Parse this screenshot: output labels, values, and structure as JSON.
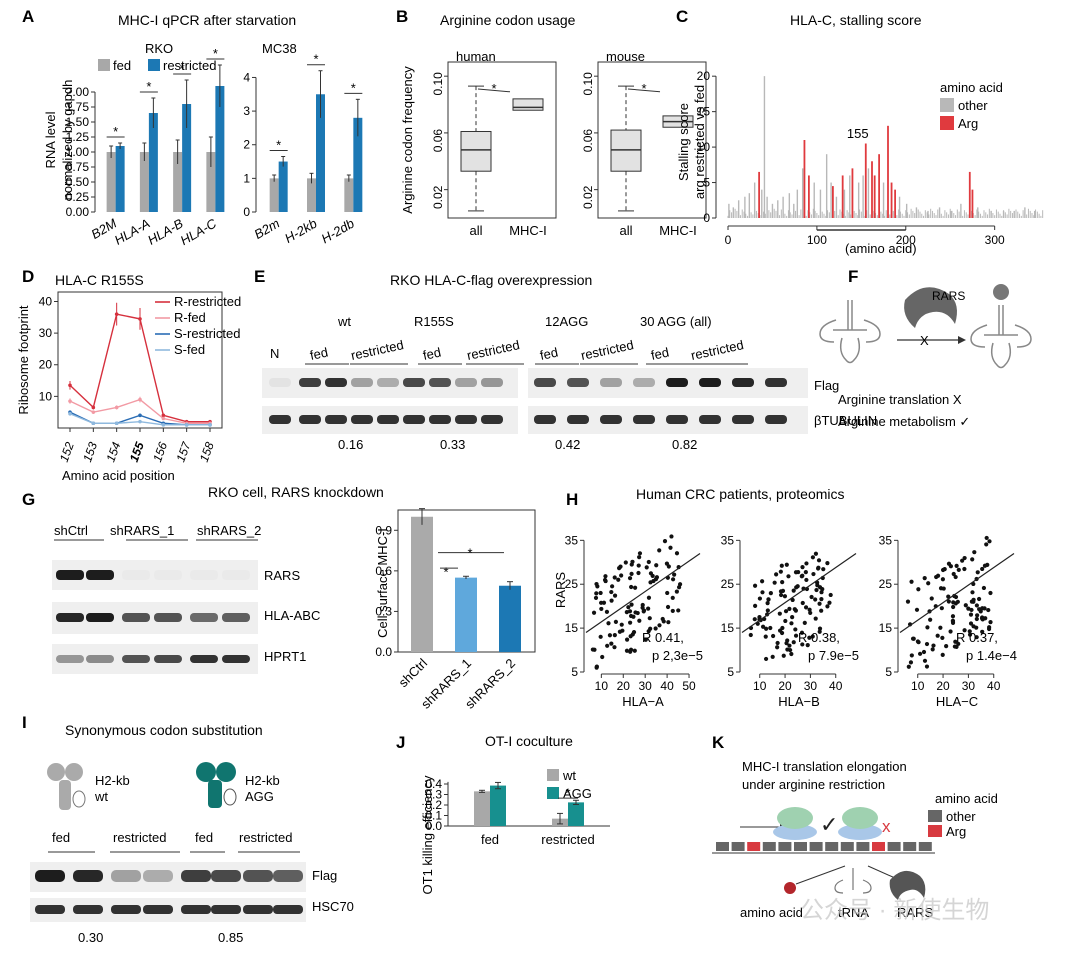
{
  "panels": {
    "A": {
      "letter": "A",
      "title": "MHC-I qPCR after starvation",
      "ylabel1": "RNA level",
      "ylabel2": "normalized by gapdh",
      "legend": [
        "fed",
        "restricted"
      ],
      "colors": {
        "fed": "#a8a8a8",
        "restricted": "#1c78b4"
      },
      "left": {
        "title": "RKO",
        "categories": [
          "B2M",
          "HLA-A",
          "HLA-B",
          "HLA-C"
        ],
        "fed": [
          1.0,
          1.0,
          1.0,
          1.0
        ],
        "restricted": [
          1.1,
          1.65,
          1.8,
          2.1
        ],
        "fed_err": [
          0.1,
          0.15,
          0.2,
          0.25
        ],
        "restricted_err": [
          0.05,
          0.25,
          0.4,
          0.35
        ],
        "yticks": [
          "0.00",
          "0.25",
          "0.50",
          "0.75",
          "1.00",
          "1.25",
          "1.50",
          "1.75",
          "2.00"
        ],
        "ylim": [
          0,
          2.2
        ],
        "star": "*"
      },
      "right": {
        "title": "MC38",
        "categories": [
          "B2m",
          "H-2kb",
          "H-2db"
        ],
        "fed": [
          1.0,
          1.0,
          1.0
        ],
        "restricted": [
          1.5,
          3.5,
          2.8
        ],
        "fed_err": [
          0.1,
          0.15,
          0.1
        ],
        "restricted_err": [
          0.15,
          0.7,
          0.55
        ],
        "yticks": [
          "0",
          "1",
          "2",
          "3",
          "4"
        ],
        "ylim": [
          0,
          4.4
        ],
        "star": "*"
      }
    },
    "B": {
      "letter": "B",
      "title": "Arginine codon usage",
      "ylabel": "Arginine codon frequency",
      "left": {
        "title": "human",
        "categories": [
          "all",
          "MHC-I"
        ],
        "yticks": [
          "0.02",
          "0.06",
          "0.10"
        ]
      },
      "right": {
        "title": "mouse",
        "categories": [
          "all",
          "MHC-I"
        ],
        "yticks": [
          "0.02",
          "0.06",
          "0.10"
        ]
      },
      "star": "*"
    },
    "C": {
      "letter": "C",
      "title": "HLA-C, stalling score",
      "ylabel1": "Stalling score",
      "ylabel2": "arg restricted vs fed",
      "xlabel": "(amino acid)",
      "yticks": [
        "0",
        "5",
        "10",
        "15",
        "20"
      ],
      "xticks": [
        "0",
        "100",
        "200",
        "300"
      ],
      "legend_title": "amino acid",
      "legend": [
        "other",
        "Arg"
      ],
      "colors": {
        "other": "#b8b8b8",
        "Arg": "#e03a3e"
      },
      "annotation": "155",
      "arg_peaks": [
        [
          35,
          6.5
        ],
        [
          86,
          11
        ],
        [
          91,
          6
        ],
        [
          118,
          4.5
        ],
        [
          129,
          6
        ],
        [
          140,
          7
        ],
        [
          155,
          10.5
        ],
        [
          162,
          8
        ],
        [
          165,
          6
        ],
        [
          170,
          9
        ],
        [
          180,
          13
        ],
        [
          184,
          5
        ],
        [
          188,
          4
        ],
        [
          272,
          6.5
        ],
        [
          275,
          4
        ]
      ],
      "other_peaks": [
        [
          1,
          2
        ],
        [
          6,
          1.5
        ],
        [
          12,
          2.5
        ],
        [
          19,
          3
        ],
        [
          24,
          3.5
        ],
        [
          30,
          5
        ],
        [
          38,
          4
        ],
        [
          41,
          20
        ],
        [
          44,
          3
        ],
        [
          50,
          2
        ],
        [
          56,
          2.5
        ],
        [
          62,
          3
        ],
        [
          69,
          3.5
        ],
        [
          74,
          2
        ],
        [
          78,
          4
        ],
        [
          84,
          7
        ],
        [
          97,
          5
        ],
        [
          104,
          4
        ],
        [
          111,
          9
        ],
        [
          116,
          5
        ],
        [
          122,
          3
        ],
        [
          131,
          4
        ],
        [
          137,
          6
        ],
        [
          147,
          5
        ],
        [
          152,
          6
        ],
        [
          158,
          7
        ],
        [
          175,
          5
        ],
        [
          193,
          3
        ],
        [
          201,
          2
        ],
        [
          212,
          1.5
        ],
        [
          225,
          1
        ],
        [
          238,
          1.5
        ],
        [
          251,
          1
        ],
        [
          262,
          2
        ],
        [
          281,
          1.5
        ],
        [
          296,
          1
        ],
        [
          310,
          1
        ],
        [
          322,
          1
        ],
        [
          334,
          1.5
        ],
        [
          345,
          1
        ]
      ]
    },
    "D": {
      "letter": "D",
      "title": "HLA-C R155S",
      "ylabel": "Ribosome footprint",
      "xlabel": "Amino acid position",
      "xticks": [
        "152",
        "153",
        "154",
        "155",
        "156",
        "157",
        "158"
      ],
      "yticks": [
        "10",
        "20",
        "30",
        "40"
      ],
      "series": [
        {
          "name": "R-restricted",
          "color": "#d6303d",
          "values": [
            13.5,
            6.5,
            36,
            34.5,
            4,
            2,
            2
          ]
        },
        {
          "name": "R-fed",
          "color": "#f29aa4",
          "values": [
            8.5,
            5,
            6.5,
            9,
            3,
            1.5,
            1.5
          ]
        },
        {
          "name": "S-restricted",
          "color": "#2a6db5",
          "values": [
            5,
            1.5,
            1.5,
            4,
            1.5,
            1,
            1
          ]
        },
        {
          "name": "S-fed",
          "color": "#8fb9de",
          "values": [
            4.5,
            1.5,
            1.5,
            2,
            1,
            1,
            1
          ]
        }
      ]
    },
    "E": {
      "letter": "E",
      "title": "RKO HLA-C-flag overexpression",
      "lane_N": "N",
      "groups": [
        "wt",
        "R155S",
        "12AGG",
        "30 AGG (all)"
      ],
      "conditions": [
        "fed",
        "restricted"
      ],
      "bands": [
        "Flag",
        "βTUBULIN"
      ],
      "ratios": [
        "0.16",
        "0.33",
        "0.42",
        "0.82"
      ]
    },
    "F": {
      "letter": "F",
      "enzyme": "RARS",
      "cross": "X",
      "line1": "Arginine translation  X",
      "line2": "Arginine metabolism ✓"
    },
    "G": {
      "letter": "G",
      "title": "RKO cell, RARS knockdown",
      "lanes": [
        "shCtrl",
        "shRARS_1",
        "shRARS_2"
      ],
      "bands": [
        "RARS",
        "HLA-ABC",
        "HPRT1"
      ],
      "ylabel": "Cell surface MHC-I",
      "yticks": [
        "0.0",
        "0.3",
        "0.6",
        "0.9"
      ],
      "chart_data": {
        "type": "bar",
        "categories": [
          "shCtrl",
          "shRARS_1",
          "shRARS_2"
        ],
        "values": [
          1.0,
          0.55,
          0.49
        ],
        "errors": [
          0.06,
          0.01,
          0.03
        ],
        "ylim": [
          0,
          1.05
        ],
        "colors": [
          "#aaaaaa",
          "#5fa8dc",
          "#1c78b4"
        ]
      },
      "star": "*"
    },
    "H": {
      "letter": "H",
      "title": "Human CRC patients, proteomics",
      "ylabel": "RARS",
      "yticks": [
        "5",
        "15",
        "25",
        "35"
      ],
      "subplots": [
        {
          "xlabel": "HLA−A",
          "xticks": [
            "10",
            "20",
            "30",
            "40",
            "50"
          ],
          "xlim": [
            3,
            55
          ],
          "r": "R 0.41,",
          "p": "p 2,3e−5"
        },
        {
          "xlabel": "HLA−B",
          "xticks": [
            "10",
            "20",
            "30",
            "40"
          ],
          "xlim": [
            3,
            48
          ],
          "r": "R 0.38,",
          "p": "p 7.9e−5"
        },
        {
          "xlabel": "HLA−C",
          "xticks": [
            "10",
            "20",
            "30",
            "40"
          ],
          "xlim": [
            3,
            48
          ],
          "r": "R 0.37,",
          "p": "p 1.4e−4"
        }
      ]
    },
    "I": {
      "letter": "I",
      "title": "Synonymous codon substitution",
      "construct1": [
        "H2-kb",
        "wt"
      ],
      "construct2": [
        "H2-kb",
        "AGG"
      ],
      "conditions": [
        "fed",
        "restricted",
        "fed",
        "restricted"
      ],
      "bands": [
        "Flag",
        "HSC70"
      ],
      "ratios": [
        "0.30",
        "0.85"
      ]
    },
    "J": {
      "letter": "J",
      "title": "OT-I coculture",
      "ylabel": "OT1 killing efficiency",
      "yticks": [
        "0.0",
        "0.1",
        "0.2",
        "0.3",
        "0.4"
      ],
      "legend": [
        "wt",
        "AGG"
      ],
      "chart_data": {
        "type": "bar",
        "categories": [
          "fed",
          "restricted"
        ],
        "series": [
          {
            "name": "wt",
            "color": "#a8a8a8",
            "values": [
              0.33,
              0.07
            ],
            "errors": [
              0.01,
              0.05
            ]
          },
          {
            "name": "AGG",
            "color": "#17908f",
            "values": [
              0.385,
              0.225
            ],
            "errors": [
              0.03,
              0.02
            ]
          }
        ],
        "ylim": [
          0,
          0.43
        ]
      },
      "star": "*"
    },
    "K": {
      "letter": "K",
      "line1": "MHC-I translation elongation",
      "line2": "under arginine restriction",
      "legend_title": "amino acid",
      "legend": [
        "other",
        "Arg"
      ],
      "labels": [
        "amino acid",
        "tRNA",
        "RARS"
      ]
    }
  },
  "watermark": "公众号 · 新使生物"
}
